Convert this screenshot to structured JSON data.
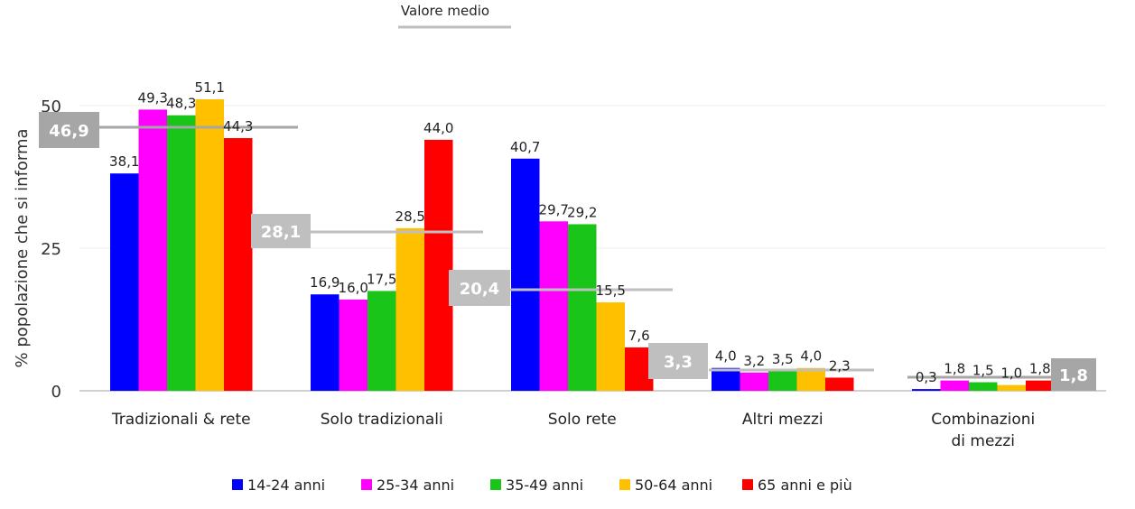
{
  "chart_data": {
    "type": "bar",
    "title": "",
    "ylabel": "% popolazione che si informa",
    "xlabel": "",
    "ylim": [
      0,
      50
    ],
    "yticks": [
      0,
      25,
      50
    ],
    "grid": true,
    "legend_position": "bottom",
    "categories": [
      "Tradizionali & rete",
      "Solo tradizionali",
      "Solo rete",
      "Altri mezzi",
      "Combinazioni di mezzi"
    ],
    "series": [
      {
        "name": "14-24 anni",
        "color": "#0000ff",
        "values": [
          38.1,
          16.9,
          40.7,
          4.0,
          0.3
        ],
        "labels": [
          "38,1",
          "16,9",
          "40,7",
          "4,0",
          "0,3"
        ]
      },
      {
        "name": "25-34 anni",
        "color": "#ff00ff",
        "values": [
          49.3,
          16.0,
          29.7,
          3.2,
          1.8
        ],
        "labels": [
          "49,3",
          "16,0",
          "29,7",
          "3,2",
          "1,8"
        ]
      },
      {
        "name": "35-49 anni",
        "color": "#19c519",
        "values": [
          48.3,
          17.5,
          29.2,
          3.5,
          1.5
        ],
        "labels": [
          "48,3",
          "17,5",
          "29,2",
          "3,5",
          "1,5"
        ]
      },
      {
        "name": "50-64 anni",
        "color": "#ffc000",
        "values": [
          51.1,
          28.5,
          15.5,
          4.0,
          1.0
        ],
        "labels": [
          "51,1",
          "28,5",
          "15,5",
          "4,0",
          "1,0"
        ]
      },
      {
        "name": "65 anni e più",
        "color": "#ff0000",
        "values": [
          44.3,
          44.0,
          7.6,
          2.3,
          1.8
        ],
        "labels": [
          "44,3",
          "44,0",
          "7,6",
          "2,3",
          "1,8"
        ]
      }
    ],
    "average": {
      "name": "Valore medio",
      "color": "#a6a6a6",
      "values": [
        46.9,
        28.1,
        20.4,
        3.3,
        1.8
      ],
      "labels": [
        "46,9",
        "28,1",
        "20,4",
        "3,3",
        "1,8"
      ]
    }
  }
}
